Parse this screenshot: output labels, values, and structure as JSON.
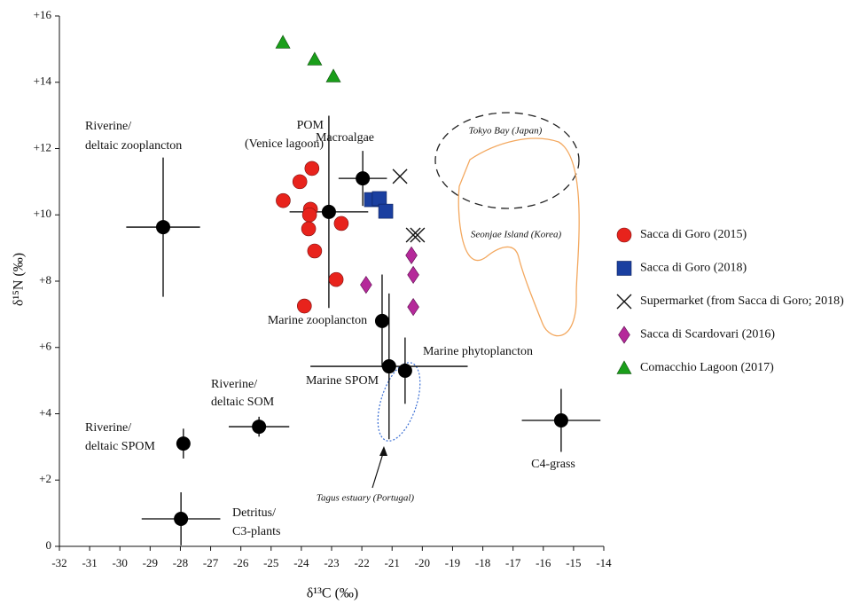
{
  "chart_data": {
    "type": "scatter",
    "x_label": "δ¹³C (‰)",
    "y_label": "δ¹⁵N (‰)",
    "xlim": [
      -32,
      -14
    ],
    "ylim": [
      0,
      16
    ],
    "xticks": [
      -32,
      -31,
      -30,
      -29,
      -28,
      -27,
      -26,
      -25,
      -24,
      -23,
      -22,
      -21,
      -20,
      -19,
      -18,
      -17,
      -16,
      -15,
      -14
    ],
    "yticks": [
      0,
      {
        "value": 2,
        "label": "+2"
      },
      {
        "value": 4,
        "label": "+4"
      },
      {
        "value": 6,
        "label": "+6"
      },
      {
        "value": 8,
        "label": "+8"
      },
      {
        "value": 10,
        "label": "+10"
      },
      {
        "value": 12,
        "label": "+12"
      },
      {
        "value": 14,
        "label": "+14"
      },
      {
        "value": 16,
        "label": "+16"
      }
    ],
    "series": [
      {
        "name": "Sacca di Goro (2015)",
        "color": "#e8231c",
        "marker": "circle",
        "x": [
          -23.65,
          -24.05,
          -24.6,
          -23.7,
          -23.73,
          -23.76,
          -22.68,
          -23.56,
          -22.85,
          -23.9
        ],
        "values": [
          11.4,
          11.0,
          10.43,
          10.17,
          10.0,
          9.58,
          9.74,
          8.91,
          8.05,
          7.25
        ]
      },
      {
        "name": "Sacca di Goro (2018)",
        "color": "#1a3fa0",
        "marker": "square",
        "x": [
          -21.68,
          -21.42,
          -21.21
        ],
        "values": [
          10.46,
          10.49,
          10.11
        ]
      },
      {
        "name": "Supermarket (from Sacca di Goro; 2018)",
        "color": "#111111",
        "marker": "x",
        "x": [
          -20.74,
          -20.3,
          -20.16
        ],
        "values": [
          11.16,
          9.39,
          9.39
        ]
      },
      {
        "name": "Sacca di Scardovari  (2016)",
        "color": "#b5299a",
        "marker": "diamond",
        "x": [
          -21.86,
          -20.36,
          -20.3,
          -20.3
        ],
        "values": [
          7.89,
          8.78,
          8.19,
          7.22
        ]
      },
      {
        "name": "Comacchio Lagoon (2017)",
        "color": "#1a9e1a",
        "marker": "triangle",
        "x": [
          -24.61,
          -23.56,
          -22.94
        ],
        "values": [
          15.2,
          14.69,
          14.18
        ]
      }
    ],
    "reference_color": "#000000",
    "references": [
      {
        "label": [
          "Riverine/",
          "deltaic zooplancton"
        ],
        "x": -28.57,
        "y": 9.63,
        "xerr": 1.22,
        "yerr": 2.1
      },
      {
        "label": [
          "POM",
          "(Venice lagoon)"
        ],
        "x": -23.09,
        "y": 10.09,
        "xerr": 1.3,
        "yerr": 2.9
      },
      {
        "label": [
          "Macroalgae"
        ],
        "x": -21.97,
        "y": 11.1,
        "xerr": 0.8,
        "yerr": 0.83
      },
      {
        "label": [
          "Marine zooplancton"
        ],
        "x": -21.33,
        "y": 6.8,
        "yerr": 1.4
      },
      {
        "label": [
          "Marine phytoplancton"
        ],
        "x": -20.57,
        "y": 5.3,
        "yerr": 1.0
      },
      {
        "label": [
          "Marine SPOM"
        ],
        "x": -21.1,
        "y": 5.43,
        "xerr": 2.6,
        "yerr": 2.2
      },
      {
        "label": [
          "Riverine/",
          "deltaic SOM"
        ],
        "x": -25.4,
        "y": 3.61,
        "xerr": 1.0,
        "yerr": 0.3
      },
      {
        "label": [
          "Riverine/",
          "deltaic SPOM"
        ],
        "x": -27.9,
        "y": 3.1,
        "yerr": 0.45
      },
      {
        "label": [
          "Detritus/",
          "C3-plants"
        ],
        "x": -27.98,
        "y": 0.83,
        "xerr": 1.3,
        "yerr": 0.8
      },
      {
        "label": [
          "C4-grass"
        ],
        "x": -15.41,
        "y": 3.8,
        "xerr": 1.3,
        "yerr": 0.95
      }
    ],
    "annotations": [
      "Tokyo Bay (Japan)",
      "Seonjae Island (Korea)",
      "Tagus estuary (Portugal)"
    ]
  }
}
